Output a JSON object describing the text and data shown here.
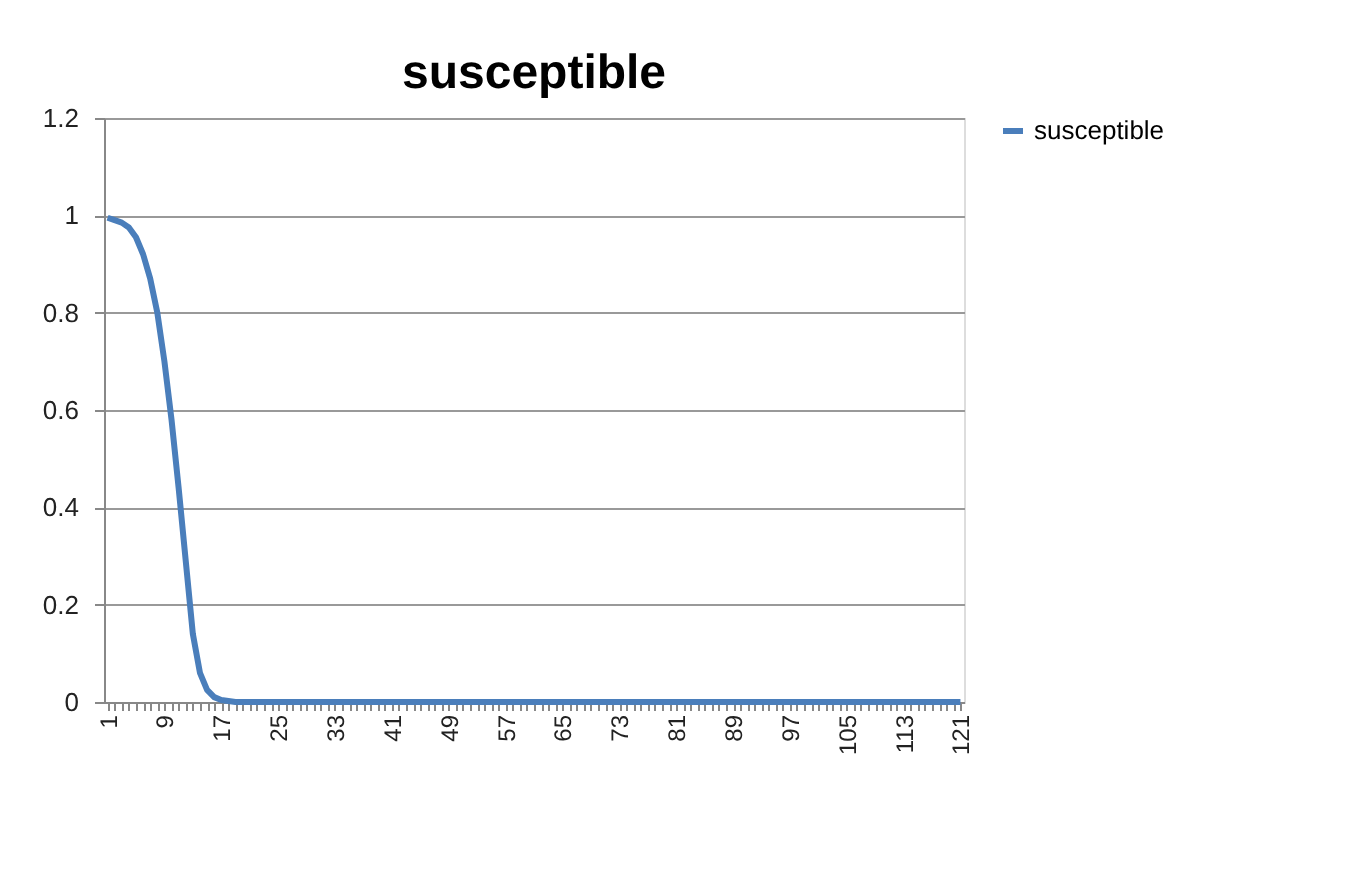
{
  "chart_data": {
    "type": "line",
    "title": "susceptible",
    "categories": [
      "1",
      null,
      null,
      null,
      null,
      null,
      null,
      null,
      "9",
      null,
      null,
      null,
      null,
      null,
      null,
      null,
      "17",
      null,
      null,
      null,
      null,
      null,
      null,
      null,
      "25",
      null,
      null,
      null,
      null,
      null,
      null,
      null,
      "33",
      null,
      null,
      null,
      null,
      null,
      null,
      null,
      "41",
      null,
      null,
      null,
      null,
      null,
      null,
      null,
      "49",
      null,
      null,
      null,
      null,
      null,
      null,
      null,
      "57",
      null,
      null,
      null,
      null,
      null,
      null,
      null,
      "65",
      null,
      null,
      null,
      null,
      null,
      null,
      null,
      "73",
      null,
      null,
      null,
      null,
      null,
      null,
      null,
      "81",
      null,
      null,
      null,
      null,
      null,
      null,
      null,
      "89",
      null,
      null,
      null,
      null,
      null,
      null,
      null,
      "97",
      null,
      null,
      null,
      null,
      null,
      null,
      null,
      "105",
      null,
      null,
      null,
      null,
      null,
      null,
      null,
      "113",
      null,
      null,
      null,
      null,
      null,
      null,
      null,
      "121"
    ],
    "series": [
      {
        "name": "susceptible",
        "color": "#4a7ebb",
        "values": [
          0.995,
          0.99,
          0.985,
          0.975,
          0.955,
          0.92,
          0.87,
          0.8,
          0.7,
          0.58,
          0.44,
          0.29,
          0.14,
          0.06,
          0.025,
          0.01,
          0.004,
          0.002,
          0,
          0,
          0,
          0,
          0,
          0,
          0,
          0,
          0,
          0,
          0,
          0,
          0,
          0,
          0,
          0,
          0,
          0,
          0,
          0,
          0,
          0,
          0,
          0,
          0,
          0,
          0,
          0,
          0,
          0,
          0,
          0,
          0,
          0,
          0,
          0,
          0,
          0,
          0,
          0,
          0,
          0,
          0,
          0,
          0,
          0,
          0,
          0,
          0,
          0,
          0,
          0,
          0,
          0,
          0,
          0,
          0,
          0,
          0,
          0,
          0,
          0,
          0,
          0,
          0,
          0,
          0,
          0,
          0,
          0,
          0,
          0,
          0,
          0,
          0,
          0,
          0,
          0,
          0,
          0,
          0,
          0,
          0,
          0,
          0,
          0,
          0,
          0,
          0,
          0,
          0,
          0,
          0,
          0,
          0,
          0,
          0,
          0,
          0,
          0,
          0,
          0,
          0
        ]
      }
    ],
    "ylim": [
      0,
      1.2
    ],
    "yticks": [
      0,
      0.2,
      0.4,
      0.6,
      0.8,
      1,
      1.2
    ],
    "grid": "y",
    "legend": "right",
    "marker": "none",
    "line_style": "solid"
  }
}
